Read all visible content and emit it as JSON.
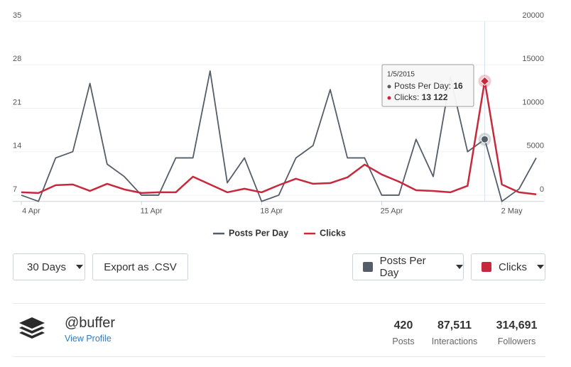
{
  "chart_data": {
    "type": "line",
    "categories": [
      "4 Apr",
      null,
      null,
      null,
      null,
      null,
      null,
      "11 Apr",
      null,
      null,
      null,
      null,
      null,
      null,
      "18 Apr",
      null,
      null,
      null,
      null,
      null,
      null,
      "25 Apr",
      null,
      null,
      null,
      null,
      null,
      null,
      "2 May",
      null,
      null
    ],
    "series": [
      {
        "name": "Posts Per Day",
        "color": "#545d69",
        "values": [
          7,
          6,
          13,
          14,
          25,
          12,
          10,
          7,
          7,
          13,
          13,
          27,
          9,
          13,
          6,
          7,
          13,
          15,
          24,
          13,
          13,
          7,
          7,
          16,
          10,
          26,
          14,
          16,
          6,
          8,
          13
        ]
      },
      {
        "name": "Clicks",
        "color": "#c8283c",
        "axis": "y2",
        "values": [
          330,
          250,
          1150,
          1230,
          490,
          1310,
          660,
          250,
          330,
          330,
          2130,
          1230,
          330,
          740,
          330,
          1150,
          1890,
          1310,
          1390,
          2050,
          3520,
          2380,
          1560,
          570,
          490,
          330,
          1070,
          13122,
          1230,
          330,
          100
        ]
      }
    ],
    "ylim": [
      6,
      35
    ],
    "yticks": [
      7,
      14,
      21,
      28,
      35
    ],
    "y2lim": [
      -714,
      20000
    ],
    "y2ticks": [
      0,
      5000,
      10000,
      15000,
      20000
    ],
    "grid": true,
    "legend": "bottom",
    "tooltip": {
      "date": "1/5/2015",
      "items": [
        {
          "label": "Posts Per Day:",
          "value": "16"
        },
        {
          "label": "Clicks:",
          "value": "13 122"
        }
      ]
    }
  },
  "controls": {
    "range": "30 Days",
    "export": "Export as .CSV",
    "metric1": "Posts Per Day",
    "metric2": "Clicks"
  },
  "profile": {
    "name": "@buffer",
    "link": "View Profile",
    "stats": [
      {
        "value": "420",
        "label": "Posts"
      },
      {
        "value": "87,511",
        "label": "Interactions"
      },
      {
        "value": "314,691",
        "label": "Followers"
      }
    ]
  }
}
